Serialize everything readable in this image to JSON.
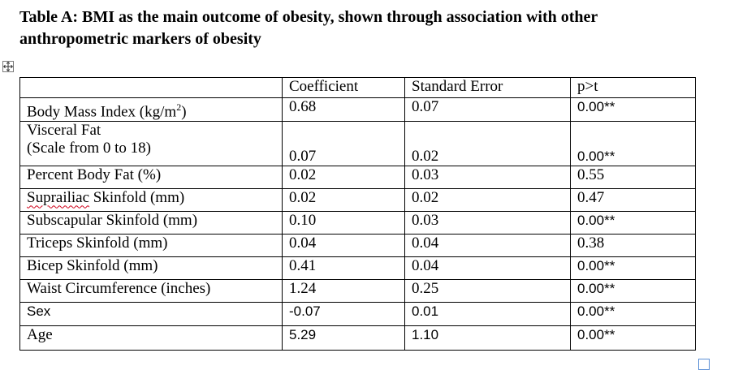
{
  "caption": {
    "line1": "Table A: BMI as the main outcome of obesity, shown through association with other",
    "line2": "anthropometric markers of obesity"
  },
  "table": {
    "headers": [
      "",
      "Coefficient",
      "Standard Error",
      "p>t"
    ],
    "rows": [
      {
        "label": "Body Mass Index (kg/m",
        "label_sup": "2",
        "label_tail": ")",
        "coef": "0.68",
        "se": "0.07",
        "p": "0.00**"
      },
      {
        "label": "Visceral Fat",
        "label2": "(Scale from 0 to 18)",
        "coef": "0.07",
        "se": "0.02",
        "p": "0.00**"
      },
      {
        "label": "Percent Body Fat (%)",
        "coef": "0.02",
        "se": "0.03",
        "p": "0.55"
      },
      {
        "label_word": "Suprailiac",
        "label_rest": " Skinfold (mm)",
        "coef": "0.02",
        "se": "0.02",
        "p": "0.47"
      },
      {
        "label": "Subscapular Skinfold (mm)",
        "coef": "0.10",
        "se": "0.03",
        "p": "0.00**"
      },
      {
        "label": "Triceps Skinfold (mm)",
        "coef": "0.04",
        "se": "0.04",
        "p": "0.38"
      },
      {
        "label": "Bicep Skinfold (mm)",
        "coef": "0.41",
        "se": "0.04",
        "p": "0.00**"
      },
      {
        "label": "Waist Circumference (inches)",
        "coef": "1.24",
        "se": "0.25",
        "p": "0.00**"
      },
      {
        "label": "Sex",
        "coef": "-0.07",
        "se": "0.01",
        "p": "0.00**"
      },
      {
        "label": "Age",
        "coef": "5.29",
        "se": "1.10",
        "p": "0.00**"
      }
    ]
  },
  "icons": {
    "move": "four-arrow-move-icon",
    "resize": "table-resize-handle-icon"
  },
  "colors": {
    "spellcheck": "#d0021b",
    "resize_handle": "#5b8fd6"
  }
}
